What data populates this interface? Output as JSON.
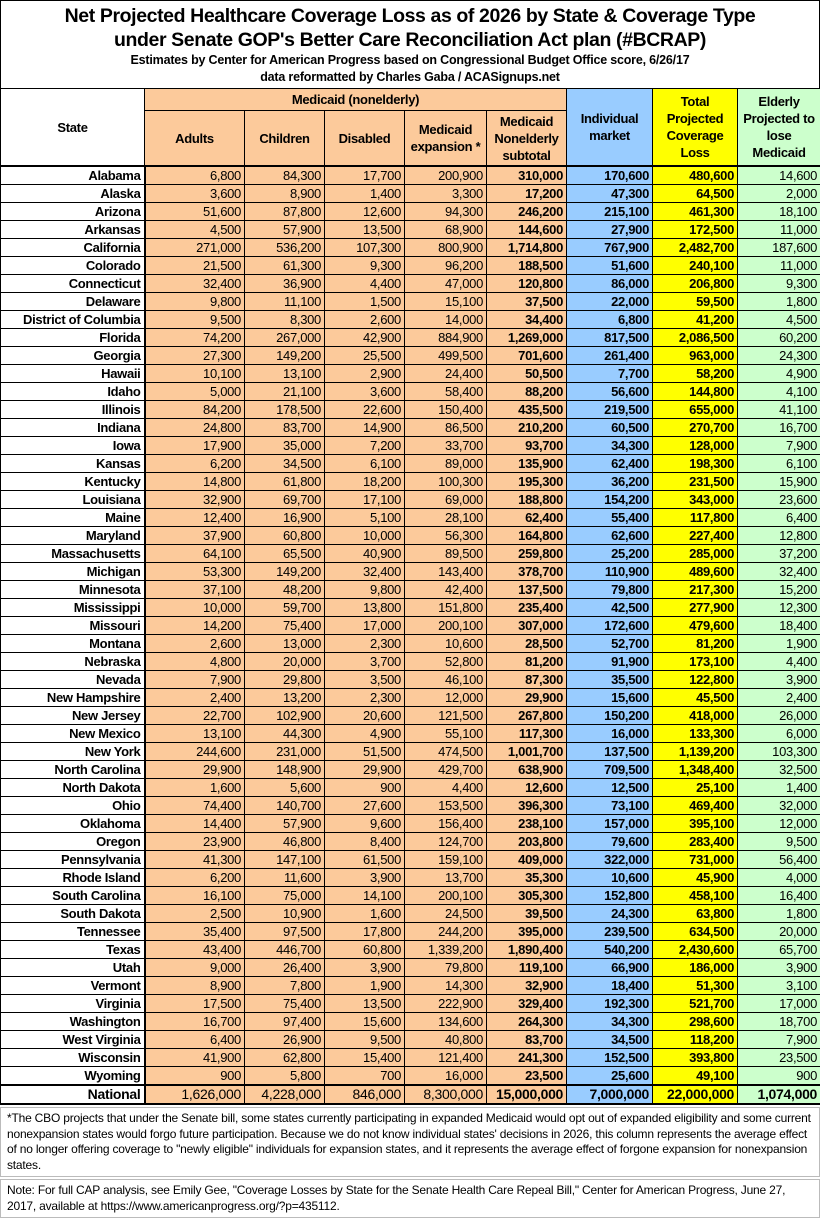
{
  "header": {
    "title_line1": "Net Projected Healthcare Coverage Loss as of 2026 by State & Coverage Type",
    "title_line2": "under Senate GOP's Better Care Reconciliation Act plan (#BCRAP)",
    "subtitle_line1": "Estimates by Center for American Progress based on Congressional Budget Office score, 6/26/17",
    "subtitle_line2": "data reformatted by Charles Gaba / ACASignups.net"
  },
  "colors": {
    "medicaid": "#fcca9b",
    "individual": "#99ccff",
    "total": "#ffff00",
    "elderly": "#ccffcc"
  },
  "columns": {
    "state": "State",
    "medicaid_group": "Medicaid (nonelderly)",
    "adults": "Adults",
    "children": "Children",
    "disabled": "Disabled",
    "expansion": "Medicaid expansion *",
    "subtotal": "Medicaid Nonelderly subtotal",
    "individual": "Individual market",
    "total": "Total Projected Coverage Loss",
    "elderly": "Elderly Projected to lose Medicaid"
  },
  "rows": [
    [
      "Alabama",
      "6,800",
      "84,300",
      "17,700",
      "200,900",
      "310,000",
      "170,600",
      "480,600",
      "14,600"
    ],
    [
      "Alaska",
      "3,600",
      "8,900",
      "1,400",
      "3,300",
      "17,200",
      "47,300",
      "64,500",
      "2,000"
    ],
    [
      "Arizona",
      "51,600",
      "87,800",
      "12,600",
      "94,300",
      "246,200",
      "215,100",
      "461,300",
      "18,100"
    ],
    [
      "Arkansas",
      "4,500",
      "57,900",
      "13,500",
      "68,900",
      "144,600",
      "27,900",
      "172,500",
      "11,000"
    ],
    [
      "California",
      "271,000",
      "536,200",
      "107,300",
      "800,900",
      "1,714,800",
      "767,900",
      "2,482,700",
      "187,600"
    ],
    [
      "Colorado",
      "21,500",
      "61,300",
      "9,300",
      "96,200",
      "188,500",
      "51,600",
      "240,100",
      "11,000"
    ],
    [
      "Connecticut",
      "32,400",
      "36,900",
      "4,400",
      "47,000",
      "120,800",
      "86,000",
      "206,800",
      "9,300"
    ],
    [
      "Delaware",
      "9,800",
      "11,100",
      "1,500",
      "15,100",
      "37,500",
      "22,000",
      "59,500",
      "1,800"
    ],
    [
      "District of Columbia",
      "9,500",
      "8,300",
      "2,600",
      "14,000",
      "34,400",
      "6,800",
      "41,200",
      "4,500"
    ],
    [
      "Florida",
      "74,200",
      "267,000",
      "42,900",
      "884,900",
      "1,269,000",
      "817,500",
      "2,086,500",
      "60,200"
    ],
    [
      "Georgia",
      "27,300",
      "149,200",
      "25,500",
      "499,500",
      "701,600",
      "261,400",
      "963,000",
      "24,300"
    ],
    [
      "Hawaii",
      "10,100",
      "13,100",
      "2,900",
      "24,400",
      "50,500",
      "7,700",
      "58,200",
      "4,900"
    ],
    [
      "Idaho",
      "5,000",
      "21,100",
      "3,600",
      "58,400",
      "88,200",
      "56,600",
      "144,800",
      "4,100"
    ],
    [
      "Illinois",
      "84,200",
      "178,500",
      "22,600",
      "150,400",
      "435,500",
      "219,500",
      "655,000",
      "41,100"
    ],
    [
      "Indiana",
      "24,800",
      "83,700",
      "14,900",
      "86,500",
      "210,200",
      "60,500",
      "270,700",
      "16,700"
    ],
    [
      "Iowa",
      "17,900",
      "35,000",
      "7,200",
      "33,700",
      "93,700",
      "34,300",
      "128,000",
      "7,900"
    ],
    [
      "Kansas",
      "6,200",
      "34,500",
      "6,100",
      "89,000",
      "135,900",
      "62,400",
      "198,300",
      "6,100"
    ],
    [
      "Kentucky",
      "14,800",
      "61,800",
      "18,200",
      "100,300",
      "195,300",
      "36,200",
      "231,500",
      "15,900"
    ],
    [
      "Louisiana",
      "32,900",
      "69,700",
      "17,100",
      "69,000",
      "188,800",
      "154,200",
      "343,000",
      "23,600"
    ],
    [
      "Maine",
      "12,400",
      "16,900",
      "5,100",
      "28,100",
      "62,400",
      "55,400",
      "117,800",
      "6,400"
    ],
    [
      "Maryland",
      "37,900",
      "60,800",
      "10,000",
      "56,300",
      "164,800",
      "62,600",
      "227,400",
      "12,800"
    ],
    [
      "Massachusetts",
      "64,100",
      "65,500",
      "40,900",
      "89,500",
      "259,800",
      "25,200",
      "285,000",
      "37,200"
    ],
    [
      "Michigan",
      "53,300",
      "149,200",
      "32,400",
      "143,400",
      "378,700",
      "110,900",
      "489,600",
      "32,400"
    ],
    [
      "Minnesota",
      "37,100",
      "48,200",
      "9,800",
      "42,400",
      "137,500",
      "79,800",
      "217,300",
      "15,200"
    ],
    [
      "Mississippi",
      "10,000",
      "59,700",
      "13,800",
      "151,800",
      "235,400",
      "42,500",
      "277,900",
      "12,300"
    ],
    [
      "Missouri",
      "14,200",
      "75,400",
      "17,000",
      "200,100",
      "307,000",
      "172,600",
      "479,600",
      "18,400"
    ],
    [
      "Montana",
      "2,600",
      "13,000",
      "2,300",
      "10,600",
      "28,500",
      "52,700",
      "81,200",
      "1,900"
    ],
    [
      "Nebraska",
      "4,800",
      "20,000",
      "3,700",
      "52,800",
      "81,200",
      "91,900",
      "173,100",
      "4,400"
    ],
    [
      "Nevada",
      "7,900",
      "29,800",
      "3,500",
      "46,100",
      "87,300",
      "35,500",
      "122,800",
      "3,900"
    ],
    [
      "New Hampshire",
      "2,400",
      "13,200",
      "2,300",
      "12,000",
      "29,900",
      "15,600",
      "45,500",
      "2,400"
    ],
    [
      "New Jersey",
      "22,700",
      "102,900",
      "20,600",
      "121,500",
      "267,800",
      "150,200",
      "418,000",
      "26,000"
    ],
    [
      "New Mexico",
      "13,100",
      "44,300",
      "4,900",
      "55,100",
      "117,300",
      "16,000",
      "133,300",
      "6,000"
    ],
    [
      "New York",
      "244,600",
      "231,000",
      "51,500",
      "474,500",
      "1,001,700",
      "137,500",
      "1,139,200",
      "103,300"
    ],
    [
      "North Carolina",
      "29,900",
      "148,900",
      "29,900",
      "429,700",
      "638,900",
      "709,500",
      "1,348,400",
      "32,500"
    ],
    [
      "North Dakota",
      "1,600",
      "5,600",
      "900",
      "4,400",
      "12,600",
      "12,500",
      "25,100",
      "1,400"
    ],
    [
      "Ohio",
      "74,400",
      "140,700",
      "27,600",
      "153,500",
      "396,300",
      "73,100",
      "469,400",
      "32,000"
    ],
    [
      "Oklahoma",
      "14,400",
      "57,900",
      "9,600",
      "156,400",
      "238,100",
      "157,000",
      "395,100",
      "12,000"
    ],
    [
      "Oregon",
      "23,900",
      "46,800",
      "8,400",
      "124,700",
      "203,800",
      "79,600",
      "283,400",
      "9,500"
    ],
    [
      "Pennsylvania",
      "41,300",
      "147,100",
      "61,500",
      "159,100",
      "409,000",
      "322,000",
      "731,000",
      "56,400"
    ],
    [
      "Rhode Island",
      "6,200",
      "11,600",
      "3,900",
      "13,700",
      "35,300",
      "10,600",
      "45,900",
      "4,000"
    ],
    [
      "South Carolina",
      "16,100",
      "75,000",
      "14,100",
      "200,100",
      "305,300",
      "152,800",
      "458,100",
      "16,400"
    ],
    [
      "South Dakota",
      "2,500",
      "10,900",
      "1,600",
      "24,500",
      "39,500",
      "24,300",
      "63,800",
      "1,800"
    ],
    [
      "Tennessee",
      "35,400",
      "97,500",
      "17,800",
      "244,200",
      "395,000",
      "239,500",
      "634,500",
      "20,000"
    ],
    [
      "Texas",
      "43,400",
      "446,700",
      "60,800",
      "1,339,200",
      "1,890,400",
      "540,200",
      "2,430,600",
      "65,700"
    ],
    [
      "Utah",
      "9,000",
      "26,400",
      "3,900",
      "79,800",
      "119,100",
      "66,900",
      "186,000",
      "3,900"
    ],
    [
      "Vermont",
      "8,900",
      "7,800",
      "1,900",
      "14,300",
      "32,900",
      "18,400",
      "51,300",
      "3,100"
    ],
    [
      "Virginia",
      "17,500",
      "75,400",
      "13,500",
      "222,900",
      "329,400",
      "192,300",
      "521,700",
      "17,000"
    ],
    [
      "Washington",
      "16,700",
      "97,400",
      "15,600",
      "134,600",
      "264,300",
      "34,300",
      "298,600",
      "18,700"
    ],
    [
      "West Virginia",
      "6,400",
      "26,900",
      "9,500",
      "40,800",
      "83,700",
      "34,500",
      "118,200",
      "7,900"
    ],
    [
      "Wisconsin",
      "41,900",
      "62,800",
      "15,400",
      "121,400",
      "241,300",
      "152,500",
      "393,800",
      "23,500"
    ],
    [
      "Wyoming",
      "900",
      "5,800",
      "700",
      "16,000",
      "23,500",
      "25,600",
      "49,100",
      "900"
    ]
  ],
  "national": [
    "National",
    "1,626,000",
    "4,228,000",
    "846,000",
    "8,300,000",
    "15,000,000",
    "7,000,000",
    "22,000,000",
    "1,074,000"
  ],
  "footnote": "*The CBO projects that under the Senate bill, some states currently participating in expanded Medicaid would opt out of expanded eligibility and some current nonexpansion states would forgo future participation. Because we do not know individual states' decisions in 2026, this column represents the average effect of no longer offering coverage to \"newly eligible\" individuals for expansion states, and it represents the average effect of forgone expansion for nonexpansion states.",
  "note": "Note: For full CAP analysis, see Emily Gee, \"Coverage Losses by State for the Senate Health Care Repeal Bill,\" Center for American Progress, June 27, 2017, available at https://www.americanprogress.org/?p=435112."
}
